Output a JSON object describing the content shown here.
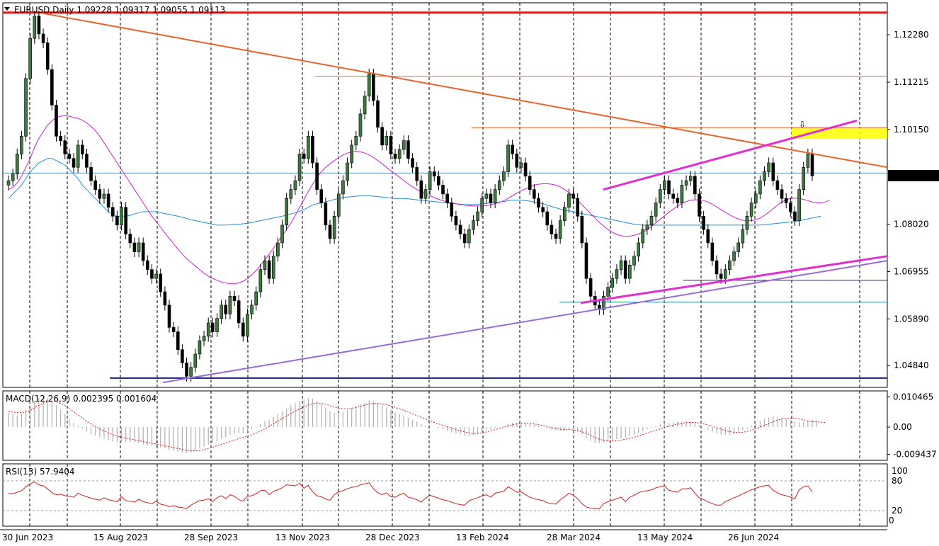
{
  "chart_data": {
    "type": "candlestick",
    "title": "EURUSD,Daily",
    "ohlc_text": "1.09228 1.09317 1.09055 1.09113",
    "last_price": "1.09113",
    "price_ticks": [
      "1.12280",
      "1.11215",
      "1.10150",
      "1.08020",
      "1.06955",
      "1.05890",
      "1.04840"
    ],
    "price_range": [
      1.0435,
      1.13
    ],
    "date_ticks": [
      "30 Jun 2023",
      "15 Aug 2023",
      "28 Sep 2023",
      "13 Nov 2023",
      "28 Dec 2023",
      "13 Feb 2024",
      "28 Mar 2024",
      "13 May 2024",
      "26 Jun 2024"
    ],
    "price_series": [
      {
        "name": "close",
        "values": [
          1.09,
          1.0915,
          1.096,
          1.1,
          1.113,
          1.122,
          1.127,
          1.123,
          1.121,
          1.115,
          1.107,
          1.1,
          1.099,
          1.096,
          1.095,
          1.093,
          1.098,
          1.096,
          1.093,
          1.09,
          1.088,
          1.086,
          1.087,
          1.084,
          1.082,
          1.08,
          1.084,
          1.078,
          1.076,
          1.074,
          1.076,
          1.072,
          1.07,
          1.068,
          1.069,
          1.065,
          1.062,
          1.057,
          1.056,
          1.052,
          1.049,
          1.046,
          1.048,
          1.051,
          1.054,
          1.055,
          1.058,
          1.056,
          1.059,
          1.062,
          1.06,
          1.064,
          1.063,
          1.058,
          1.055,
          1.06,
          1.062,
          1.065,
          1.07,
          1.072,
          1.068,
          1.073,
          1.076,
          1.08,
          1.086,
          1.088,
          1.09,
          1.096,
          1.095,
          1.1,
          1.094,
          1.088,
          1.085,
          1.08,
          1.077,
          1.082,
          1.087,
          1.09,
          1.094,
          1.098,
          1.1,
          1.105,
          1.109,
          1.114,
          1.108,
          1.102,
          1.098,
          1.1,
          1.096,
          1.095,
          1.097,
          1.099,
          1.095,
          1.093,
          1.09,
          1.086,
          1.088,
          1.092,
          1.091,
          1.089,
          1.087,
          1.085,
          1.082,
          1.08,
          1.078,
          1.076,
          1.079,
          1.081,
          1.083,
          1.086,
          1.087,
          1.085,
          1.088,
          1.09,
          1.092,
          1.098,
          1.096,
          1.093,
          1.094,
          1.091,
          1.088,
          1.086,
          1.084,
          1.083,
          1.08,
          1.078,
          1.077,
          1.081,
          1.084,
          1.087,
          1.086,
          1.082,
          1.076,
          1.068,
          1.064,
          1.062,
          1.061,
          1.064,
          1.066,
          1.068,
          1.07,
          1.072,
          1.068,
          1.071,
          1.073,
          1.076,
          1.079,
          1.08,
          1.082,
          1.085,
          1.088,
          1.09,
          1.087,
          1.086,
          1.085,
          1.089,
          1.09,
          1.091,
          1.087,
          1.082,
          1.079,
          1.076,
          1.072,
          1.069,
          1.068,
          1.07,
          1.072,
          1.074,
          1.076,
          1.079,
          1.082,
          1.085,
          1.087,
          1.09,
          1.092,
          1.094,
          1.09,
          1.088,
          1.086,
          1.085,
          1.083,
          1.081,
          1.088,
          1.093,
          1.096,
          1.0911
        ]
      },
      {
        "name": "MA-slow",
        "values": [
          1.086,
          1.087,
          1.088,
          1.089,
          1.0905,
          1.092,
          1.093,
          1.094,
          1.0945,
          1.095,
          1.095,
          1.0945,
          1.094,
          1.0935,
          1.0925,
          1.0915,
          1.0905,
          1.089,
          1.088,
          1.087,
          1.086,
          1.085,
          1.084,
          1.083,
          1.0825,
          1.082,
          1.082,
          1.082,
          1.0822,
          1.0825,
          1.0828,
          1.083,
          1.083,
          1.083,
          1.083,
          1.0828,
          1.0826,
          1.0824,
          1.0822,
          1.082,
          1.0818,
          1.0815,
          1.0812,
          1.081,
          1.0808,
          1.0806,
          1.0804,
          1.0802,
          1.08,
          1.08,
          1.08,
          1.0801,
          1.0802,
          1.0802,
          1.0803,
          1.0804,
          1.0806,
          1.0808,
          1.081,
          1.0812,
          1.0814,
          1.0816,
          1.0818,
          1.082,
          1.0822,
          1.0825,
          1.0828,
          1.0831,
          1.0835,
          1.084,
          1.0845,
          1.0848,
          1.085,
          1.0852,
          1.0855,
          1.0858,
          1.086,
          1.0862,
          1.0863,
          1.0864,
          1.0865,
          1.0866,
          1.0867,
          1.0866,
          1.0865,
          1.0864,
          1.0863,
          1.0862,
          1.0861,
          1.086,
          1.086,
          1.086,
          1.0859,
          1.0858,
          1.0857,
          1.0856,
          1.0855,
          1.0854,
          1.0853,
          1.0852,
          1.0851,
          1.085,
          1.0849,
          1.0848,
          1.0847,
          1.0846,
          1.0846,
          1.0846,
          1.0847,
          1.0848,
          1.0849,
          1.085,
          1.0851,
          1.0852,
          1.0853,
          1.0855,
          1.0856,
          1.0856,
          1.0856,
          1.0855,
          1.0854,
          1.0852,
          1.085,
          1.0848,
          1.0845,
          1.0842,
          1.0839,
          1.0836,
          1.0834,
          1.0832,
          1.083,
          1.0828,
          1.0826,
          1.0824,
          1.0822,
          1.082,
          1.0818,
          1.0816,
          1.0814,
          1.0812,
          1.081,
          1.0808,
          1.0806,
          1.0804,
          1.0802,
          1.0801,
          1.08,
          1.08,
          1.08,
          1.08,
          1.08,
          1.08,
          1.08,
          1.08,
          1.08,
          1.08,
          1.08,
          1.08,
          1.08,
          1.08,
          1.08,
          1.08,
          1.08,
          1.08,
          1.08,
          1.08,
          1.08,
          1.08,
          1.08,
          1.08,
          1.08,
          1.08,
          1.08,
          1.08,
          1.0801,
          1.0802,
          1.0803,
          1.0804,
          1.0805,
          1.0806,
          1.0807,
          1.0808,
          1.081,
          1.0812,
          1.0814,
          1.0816,
          1.0818,
          1.082
        ]
      },
      {
        "name": "MA-fast",
        "values": [
          1.088,
          1.0885,
          1.0895,
          1.091,
          1.093,
          1.095,
          1.0975,
          1.0995,
          1.101,
          1.1025,
          1.1035,
          1.1042,
          1.1045,
          1.1046,
          1.1045,
          1.1042,
          1.104,
          1.1036,
          1.103,
          1.1022,
          1.1012,
          1.1,
          1.0985,
          1.097,
          1.0955,
          1.094,
          1.0925,
          1.091,
          1.0895,
          1.088,
          1.0865,
          1.085,
          1.0835,
          1.082,
          1.0808,
          1.0795,
          1.0782,
          1.077,
          1.0758,
          1.0746,
          1.0735,
          1.0725,
          1.0716,
          1.0708,
          1.07,
          1.0692,
          1.0685,
          1.068,
          1.0676,
          1.0672,
          1.067,
          1.0668,
          1.0668,
          1.067,
          1.0674,
          1.068,
          1.0688,
          1.0698,
          1.071,
          1.0722,
          1.0735,
          1.0748,
          1.0762,
          1.0776,
          1.079,
          1.0805,
          1.0822,
          1.084,
          1.0858,
          1.0876,
          1.0892,
          1.0908,
          1.092,
          1.093,
          1.0938,
          1.0945,
          1.0952,
          1.0958,
          1.0962,
          1.0965,
          1.0966,
          1.0965,
          1.0962,
          1.0958,
          1.0952,
          1.0945,
          1.0938,
          1.093,
          1.0922,
          1.0915,
          1.0908,
          1.09,
          1.0893,
          1.0886,
          1.088,
          1.0875,
          1.087,
          1.0866,
          1.0862,
          1.0858,
          1.0855,
          1.0852,
          1.085,
          1.0848,
          1.0846,
          1.0845,
          1.0844,
          1.0843,
          1.0843,
          1.0843,
          1.0844,
          1.0846,
          1.0848,
          1.0851,
          1.0855,
          1.086,
          1.0866,
          1.0872,
          1.0877,
          1.0882,
          1.0886,
          1.089,
          1.0892,
          1.0893,
          1.0893,
          1.0892,
          1.089,
          1.0886,
          1.088,
          1.0873,
          1.0865,
          1.0856,
          1.0846,
          1.0836,
          1.0826,
          1.0816,
          1.0806,
          1.0798,
          1.079,
          1.0784,
          1.0779,
          1.0776,
          1.0775,
          1.0775,
          1.0777,
          1.078,
          1.0784,
          1.079,
          1.0797,
          1.0805,
          1.0813,
          1.0821,
          1.0829,
          1.0836,
          1.0843,
          1.0849,
          1.0853,
          1.0856,
          1.0857,
          1.0857,
          1.0855,
          1.0852,
          1.0847,
          1.0841,
          1.0835,
          1.0829,
          1.0823,
          1.0818,
          1.0814,
          1.0811,
          1.081,
          1.081,
          1.0812,
          1.0816,
          1.0822,
          1.0829,
          1.0837,
          1.0845,
          1.0852,
          1.0857,
          1.086,
          1.0861,
          1.086,
          1.0858,
          1.0855,
          1.0852,
          1.085,
          1.085,
          1.0852,
          1.0856
        ]
      }
    ],
    "macd": {
      "label": "MACD(12,26,9) 0.002395 0.001604",
      "ticks": [
        "0.010465",
        "0.00",
        "-0.009437"
      ],
      "range": [
        -0.0115,
        0.0125
      ],
      "histogram": [
        0.005,
        0.0045,
        0.004,
        0.0048,
        0.006,
        0.0075,
        0.009,
        0.01,
        0.0105,
        0.01,
        0.009,
        0.0075,
        0.006,
        0.0045,
        0.003,
        0.0015,
        0.0005,
        -0.0005,
        -0.0015,
        -0.0025,
        -0.003,
        -0.0035,
        -0.004,
        -0.0045,
        -0.005,
        -0.0052,
        -0.005,
        -0.005,
        -0.0052,
        -0.0055,
        -0.0058,
        -0.006,
        -0.0062,
        -0.0065,
        -0.0068,
        -0.007,
        -0.0072,
        -0.0078,
        -0.0082,
        -0.0085,
        -0.0088,
        -0.009,
        -0.0088,
        -0.0082,
        -0.0075,
        -0.0068,
        -0.006,
        -0.0055,
        -0.0048,
        -0.004,
        -0.0035,
        -0.0028,
        -0.0022,
        -0.002,
        -0.0022,
        -0.0015,
        -0.0008,
        0.0,
        0.001,
        0.002,
        0.0025,
        0.0035,
        0.0045,
        0.0055,
        0.0065,
        0.0075,
        0.0082,
        0.009,
        0.0095,
        0.01,
        0.0098,
        0.009,
        0.008,
        0.0068,
        0.0055,
        0.005,
        0.005,
        0.0052,
        0.0058,
        0.0065,
        0.0072,
        0.0078,
        0.0085,
        0.0092,
        0.009,
        0.0082,
        0.0075,
        0.0068,
        0.006,
        0.0052,
        0.0045,
        0.004,
        0.0032,
        0.0025,
        0.0018,
        0.001,
        0.0005,
        0.0002,
        0.0,
        -0.0003,
        -0.0008,
        -0.0013,
        -0.0018,
        -0.0022,
        -0.0026,
        -0.003,
        -0.003,
        -0.0028,
        -0.0024,
        -0.0018,
        -0.0012,
        -0.0008,
        -0.0004,
        0.0,
        0.0004,
        0.0012,
        0.0015,
        0.0015,
        0.0016,
        0.0015,
        0.0012,
        0.0008,
        0.0004,
        0.0,
        -0.0004,
        -0.0008,
        -0.0012,
        -0.0012,
        -0.001,
        -0.0008,
        -0.001,
        -0.0016,
        -0.0026,
        -0.0038,
        -0.0048,
        -0.0055,
        -0.0056,
        -0.0054,
        -0.005,
        -0.0046,
        -0.0042,
        -0.004,
        -0.0036,
        -0.0032,
        -0.0026,
        -0.002,
        -0.0015,
        -0.0008,
        -0.0002,
        0.0004,
        0.001,
        0.0012,
        0.0014,
        0.0016,
        0.0018,
        0.002,
        0.0022,
        0.002,
        0.0014,
        0.0008,
        0.0,
        -0.0008,
        -0.0016,
        -0.0022,
        -0.0026,
        -0.0028,
        -0.0026,
        -0.0022,
        -0.0016,
        -0.001,
        -0.0004,
        0.0004,
        0.0012,
        0.002,
        0.0028,
        0.0034,
        0.0038,
        0.0036,
        0.0032,
        0.0028,
        0.0024,
        0.002,
        0.0016,
        0.0018,
        0.0022,
        0.0024,
        0.0024
      ],
      "signal": [
        0.0055,
        0.0052,
        0.005,
        0.005,
        0.0052,
        0.0058,
        0.0066,
        0.0075,
        0.0083,
        0.0088,
        0.009,
        0.0088,
        0.0082,
        0.0074,
        0.0064,
        0.0053,
        0.0042,
        0.0031,
        0.002,
        0.001,
        0.0002,
        -0.0006,
        -0.0013,
        -0.002,
        -0.0026,
        -0.0031,
        -0.0035,
        -0.0038,
        -0.0041,
        -0.0044,
        -0.0047,
        -0.005,
        -0.0053,
        -0.0056,
        -0.0059,
        -0.0062,
        -0.0065,
        -0.0068,
        -0.0071,
        -0.0074,
        -0.0077,
        -0.008,
        -0.0082,
        -0.0082,
        -0.0081,
        -0.0078,
        -0.0074,
        -0.007,
        -0.0065,
        -0.006,
        -0.0055,
        -0.005,
        -0.0045,
        -0.004,
        -0.0036,
        -0.0032,
        -0.0027,
        -0.0021,
        -0.0014,
        -0.0006,
        0.0002,
        0.0011,
        0.002,
        0.0029,
        0.0038,
        0.0047,
        0.0055,
        0.0063,
        0.007,
        0.0076,
        0.0081,
        0.0083,
        0.0082,
        0.0079,
        0.0074,
        0.0069,
        0.0065,
        0.0063,
        0.0063,
        0.0065,
        0.0068,
        0.0072,
        0.0076,
        0.008,
        0.0082,
        0.0082,
        0.008,
        0.0077,
        0.0073,
        0.0068,
        0.0063,
        0.0058,
        0.0052,
        0.0046,
        0.004,
        0.0034,
        0.0028,
        0.0022,
        0.0016,
        0.0011,
        0.0006,
        0.0001,
        -0.0004,
        -0.0009,
        -0.0013,
        -0.0017,
        -0.002,
        -0.0022,
        -0.0022,
        -0.002,
        -0.0017,
        -0.0013,
        -0.0009,
        -0.0005,
        -0.0001,
        0.0004,
        0.0008,
        0.0011,
        0.0013,
        0.0014,
        0.0013,
        0.0011,
        0.0008,
        0.0005,
        0.0002,
        -0.0002,
        -0.0005,
        -0.0008,
        -0.0009,
        -0.0009,
        -0.001,
        -0.0012,
        -0.0016,
        -0.0022,
        -0.0029,
        -0.0036,
        -0.0042,
        -0.0046,
        -0.0048,
        -0.0048,
        -0.0047,
        -0.0045,
        -0.0042,
        -0.0039,
        -0.0035,
        -0.0031,
        -0.0026,
        -0.0021,
        -0.0016,
        -0.0011,
        -0.0006,
        -0.0001,
        0.0003,
        0.0007,
        0.001,
        0.0013,
        0.0015,
        0.0016,
        0.0016,
        0.0014,
        0.0011,
        0.0007,
        0.0003,
        -0.0002,
        -0.0007,
        -0.0012,
        -0.0016,
        -0.0018,
        -0.0019,
        -0.0018,
        -0.0015,
        -0.0011,
        -0.0006,
        0.0,
        0.0006,
        0.0012,
        0.0018,
        0.0024,
        0.0028,
        0.003,
        0.0031,
        0.003,
        0.0028,
        0.0025,
        0.0021,
        0.0019,
        0.0018,
        0.0017,
        0.0016
      ]
    },
    "rsi": {
      "label": "RSI(13) 57.9404",
      "ticks": [
        "100",
        "80",
        "20",
        "0"
      ],
      "range": [
        0,
        100
      ],
      "values": [
        55,
        54,
        57,
        60,
        68,
        74,
        78,
        72,
        70,
        64,
        56,
        52,
        53,
        50,
        49,
        47,
        55,
        51,
        48,
        45,
        43,
        41,
        46,
        42,
        40,
        38,
        48,
        40,
        39,
        37,
        43,
        38,
        36,
        34,
        39,
        33,
        31,
        28,
        30,
        27,
        26,
        24,
        31,
        36,
        40,
        41,
        44,
        38,
        46,
        50,
        44,
        52,
        49,
        42,
        39,
        49,
        50,
        54,
        60,
        61,
        52,
        59,
        62,
        66,
        72,
        71,
        70,
        75,
        65,
        71,
        58,
        50,
        48,
        43,
        41,
        52,
        58,
        60,
        64,
        67,
        68,
        72,
        74,
        76,
        64,
        56,
        52,
        56,
        48,
        47,
        52,
        55,
        47,
        45,
        42,
        37,
        45,
        51,
        48,
        45,
        42,
        40,
        37,
        34,
        32,
        31,
        40,
        43,
        46,
        50,
        52,
        47,
        55,
        57,
        59,
        68,
        63,
        57,
        58,
        52,
        47,
        44,
        42,
        40,
        36,
        34,
        33,
        42,
        48,
        55,
        51,
        44,
        34,
        27,
        25,
        24,
        24,
        34,
        38,
        41,
        44,
        47,
        38,
        47,
        51,
        56,
        59,
        60,
        62,
        66,
        68,
        70,
        61,
        59,
        57,
        64,
        64,
        66,
        55,
        46,
        42,
        38,
        34,
        31,
        31,
        38,
        42,
        46,
        49,
        54,
        58,
        62,
        65,
        68,
        70,
        71,
        61,
        56,
        52,
        50,
        47,
        44,
        62,
        68,
        70,
        57.9
      ]
    },
    "annotations": {
      "arrow": "⇩"
    }
  }
}
